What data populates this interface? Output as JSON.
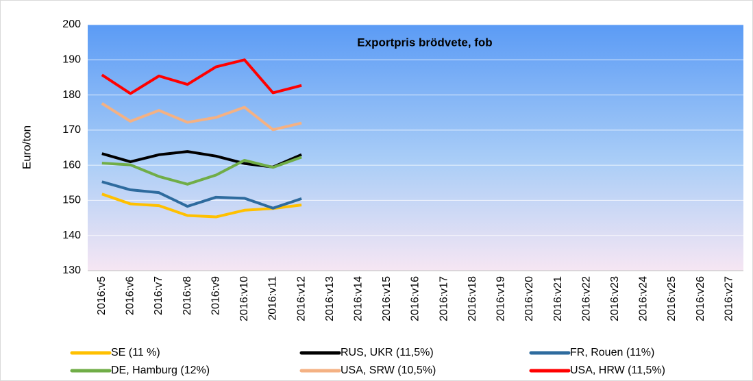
{
  "chart_data": {
    "type": "line",
    "title": "Exportpris brödvete, fob",
    "y_label": "Euro/ton",
    "categories": [
      "2016:v5",
      "2016:v6",
      "2016:v7",
      "2016:v8",
      "2016:v9",
      "2016:v10",
      "2016:v11",
      "2016:v12",
      "2016:v13",
      "2016:v14",
      "2016:v15",
      "2016:v16",
      "2016:v17",
      "2016:v18",
      "2016:v19",
      "2016:v20",
      "2016:v21",
      "2016:v22",
      "2016:v23",
      "2016:v24",
      "2016:v25",
      "2016:v26",
      "2016:v27"
    ],
    "series": [
      {
        "name": "SE (11 %)",
        "color": "#ffc000",
        "values": [
          151.8,
          149,
          148.5,
          145.7,
          145.3,
          147.2,
          147.7,
          148.7,
          null,
          null,
          null,
          null,
          null,
          null,
          null,
          null,
          null,
          null,
          null,
          null,
          null,
          null,
          null
        ]
      },
      {
        "name": "RUS, UKR (11,5%)",
        "color": "#000000",
        "values": [
          163.3,
          161,
          163,
          163.9,
          162.6,
          160.5,
          159.5,
          163,
          null,
          null,
          null,
          null,
          null,
          null,
          null,
          null,
          null,
          null,
          null,
          null,
          null,
          null,
          null
        ]
      },
      {
        "name": "FR, Rouen (11%)",
        "color": "#2e6b9e",
        "values": [
          155.3,
          153,
          152.2,
          148.3,
          150.9,
          150.6,
          147.8,
          150.5,
          null,
          null,
          null,
          null,
          null,
          null,
          null,
          null,
          null,
          null,
          null,
          null,
          null,
          null,
          null
        ]
      },
      {
        "name": "DE, Hamburg (12%)",
        "color": "#70ad47",
        "values": [
          160.6,
          160.1,
          156.8,
          154.6,
          157.2,
          161.4,
          159.4,
          162.3,
          null,
          null,
          null,
          null,
          null,
          null,
          null,
          null,
          null,
          null,
          null,
          null,
          null,
          null,
          null
        ]
      },
      {
        "name": "USA, SRW (10,5%)",
        "color": "#f4b183",
        "values": [
          177.6,
          172.5,
          175.6,
          172.2,
          173.6,
          176.5,
          170.1,
          172,
          null,
          null,
          null,
          null,
          null,
          null,
          null,
          null,
          null,
          null,
          null,
          null,
          null,
          null,
          null
        ]
      },
      {
        "name": "USA, HRW (11,5%)",
        "color": "#ff0000",
        "values": [
          185.7,
          180.4,
          185.4,
          183,
          188,
          190,
          180.6,
          182.7,
          null,
          null,
          null,
          null,
          null,
          null,
          null,
          null,
          null,
          null,
          null,
          null,
          null,
          null,
          null
        ]
      }
    ],
    "ylim": [
      130,
      200
    ],
    "yticks": [
      130,
      140,
      150,
      160,
      170,
      180,
      190,
      200
    ],
    "grid": true
  }
}
